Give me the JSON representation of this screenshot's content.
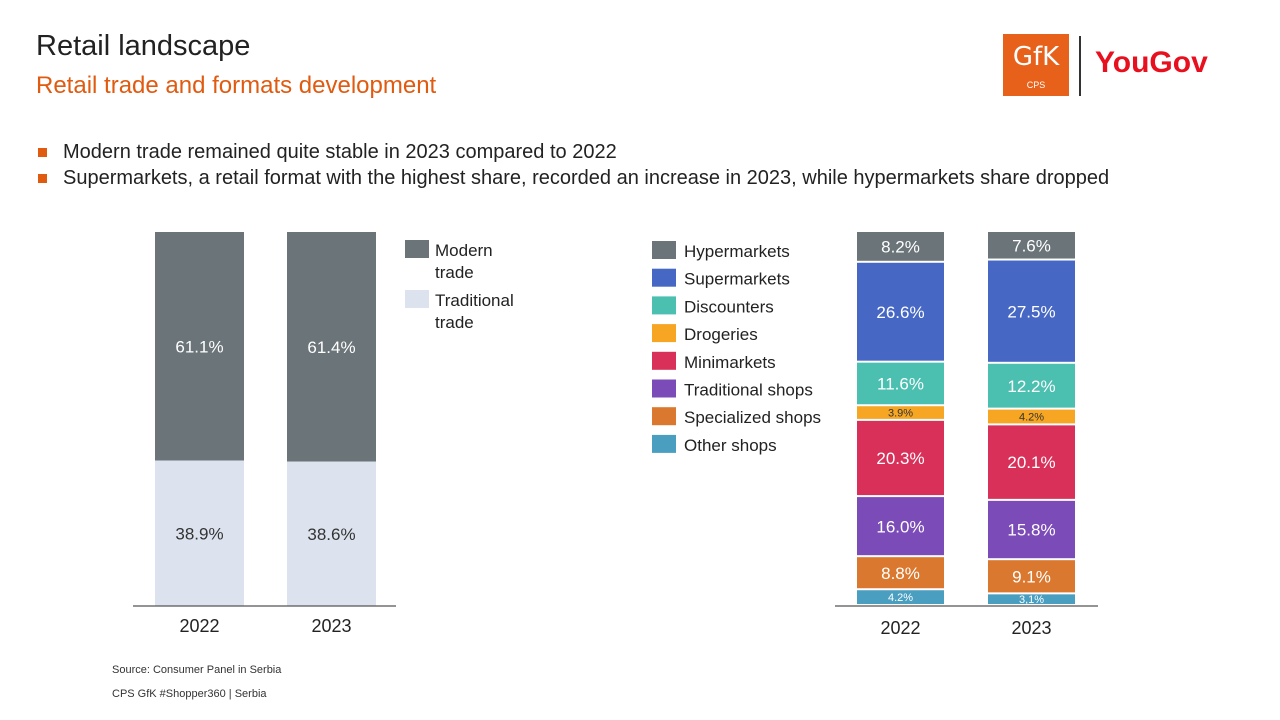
{
  "header": {
    "title": "Retail landscape",
    "subtitle": "Retail trade and formats development"
  },
  "logos": {
    "gfk_text": "GfK",
    "gfk_sub": "CPS",
    "yougov_text": "YouGov",
    "gfk_color": "#e8611a",
    "yougov_color": "#e8101e"
  },
  "bullets": [
    "Modern trade remained quite stable in 2023 compared to 2022",
    "Supermarkets, a retail format with the highest share, recorded an increase in 2023, while hypermarkets share dropped"
  ],
  "chart_data": [
    {
      "type": "bar",
      "stacked": true,
      "categories": [
        "2022",
        "2023"
      ],
      "series": [
        {
          "name": "Modern trade",
          "values": [
            61.1,
            61.4
          ],
          "labels": [
            "61.1%",
            "61.4%"
          ],
          "color": "#6b7479"
        },
        {
          "name": "Traditional trade",
          "values": [
            38.9,
            38.6
          ],
          "labels": [
            "38.9%",
            "38.6%"
          ],
          "color": "#dde3ee"
        }
      ],
      "legend_position": "right",
      "grid": false
    },
    {
      "type": "bar",
      "stacked": true,
      "categories": [
        "2022",
        "2023"
      ],
      "series": [
        {
          "name": "Hypermarkets",
          "values": [
            8.2,
            7.6
          ],
          "labels": [
            "8.2%",
            "7.6%"
          ],
          "color": "#6b7479"
        },
        {
          "name": "Supermarkets",
          "values": [
            26.6,
            27.5
          ],
          "labels": [
            "26.6%",
            "27.5%"
          ],
          "color": "#4668c4"
        },
        {
          "name": "Discounters",
          "values": [
            11.6,
            12.2
          ],
          "labels": [
            "11.6%",
            "12.2%"
          ],
          "color": "#4bbfb0"
        },
        {
          "name": "Drogeries",
          "values": [
            3.9,
            4.2
          ],
          "labels": [
            "3.9%",
            "4.2%"
          ],
          "color": "#f6a623"
        },
        {
          "name": "Minimarkets",
          "values": [
            20.3,
            20.1
          ],
          "labels": [
            "20.3%",
            "20.1%"
          ],
          "color": "#d9305a"
        },
        {
          "name": "Traditional shops",
          "values": [
            16.0,
            15.8
          ],
          "labels": [
            "16.0%",
            "15.8%"
          ],
          "color": "#7b4bb8"
        },
        {
          "name": "Specialized shops",
          "values": [
            8.8,
            9.1
          ],
          "labels": [
            "8.8%",
            "9.1%"
          ],
          "color": "#d9782e"
        },
        {
          "name": "Other shops",
          "values": [
            4.2,
            3.1
          ],
          "labels": [
            "4.2%",
            "3,1%"
          ],
          "color": "#4a9ec0"
        }
      ],
      "legend_position": "left",
      "grid": false
    }
  ],
  "footer": {
    "source": "Source: Consumer Panel in Serbia",
    "credit": "CPS GfK #Shopper360 | Serbia"
  }
}
